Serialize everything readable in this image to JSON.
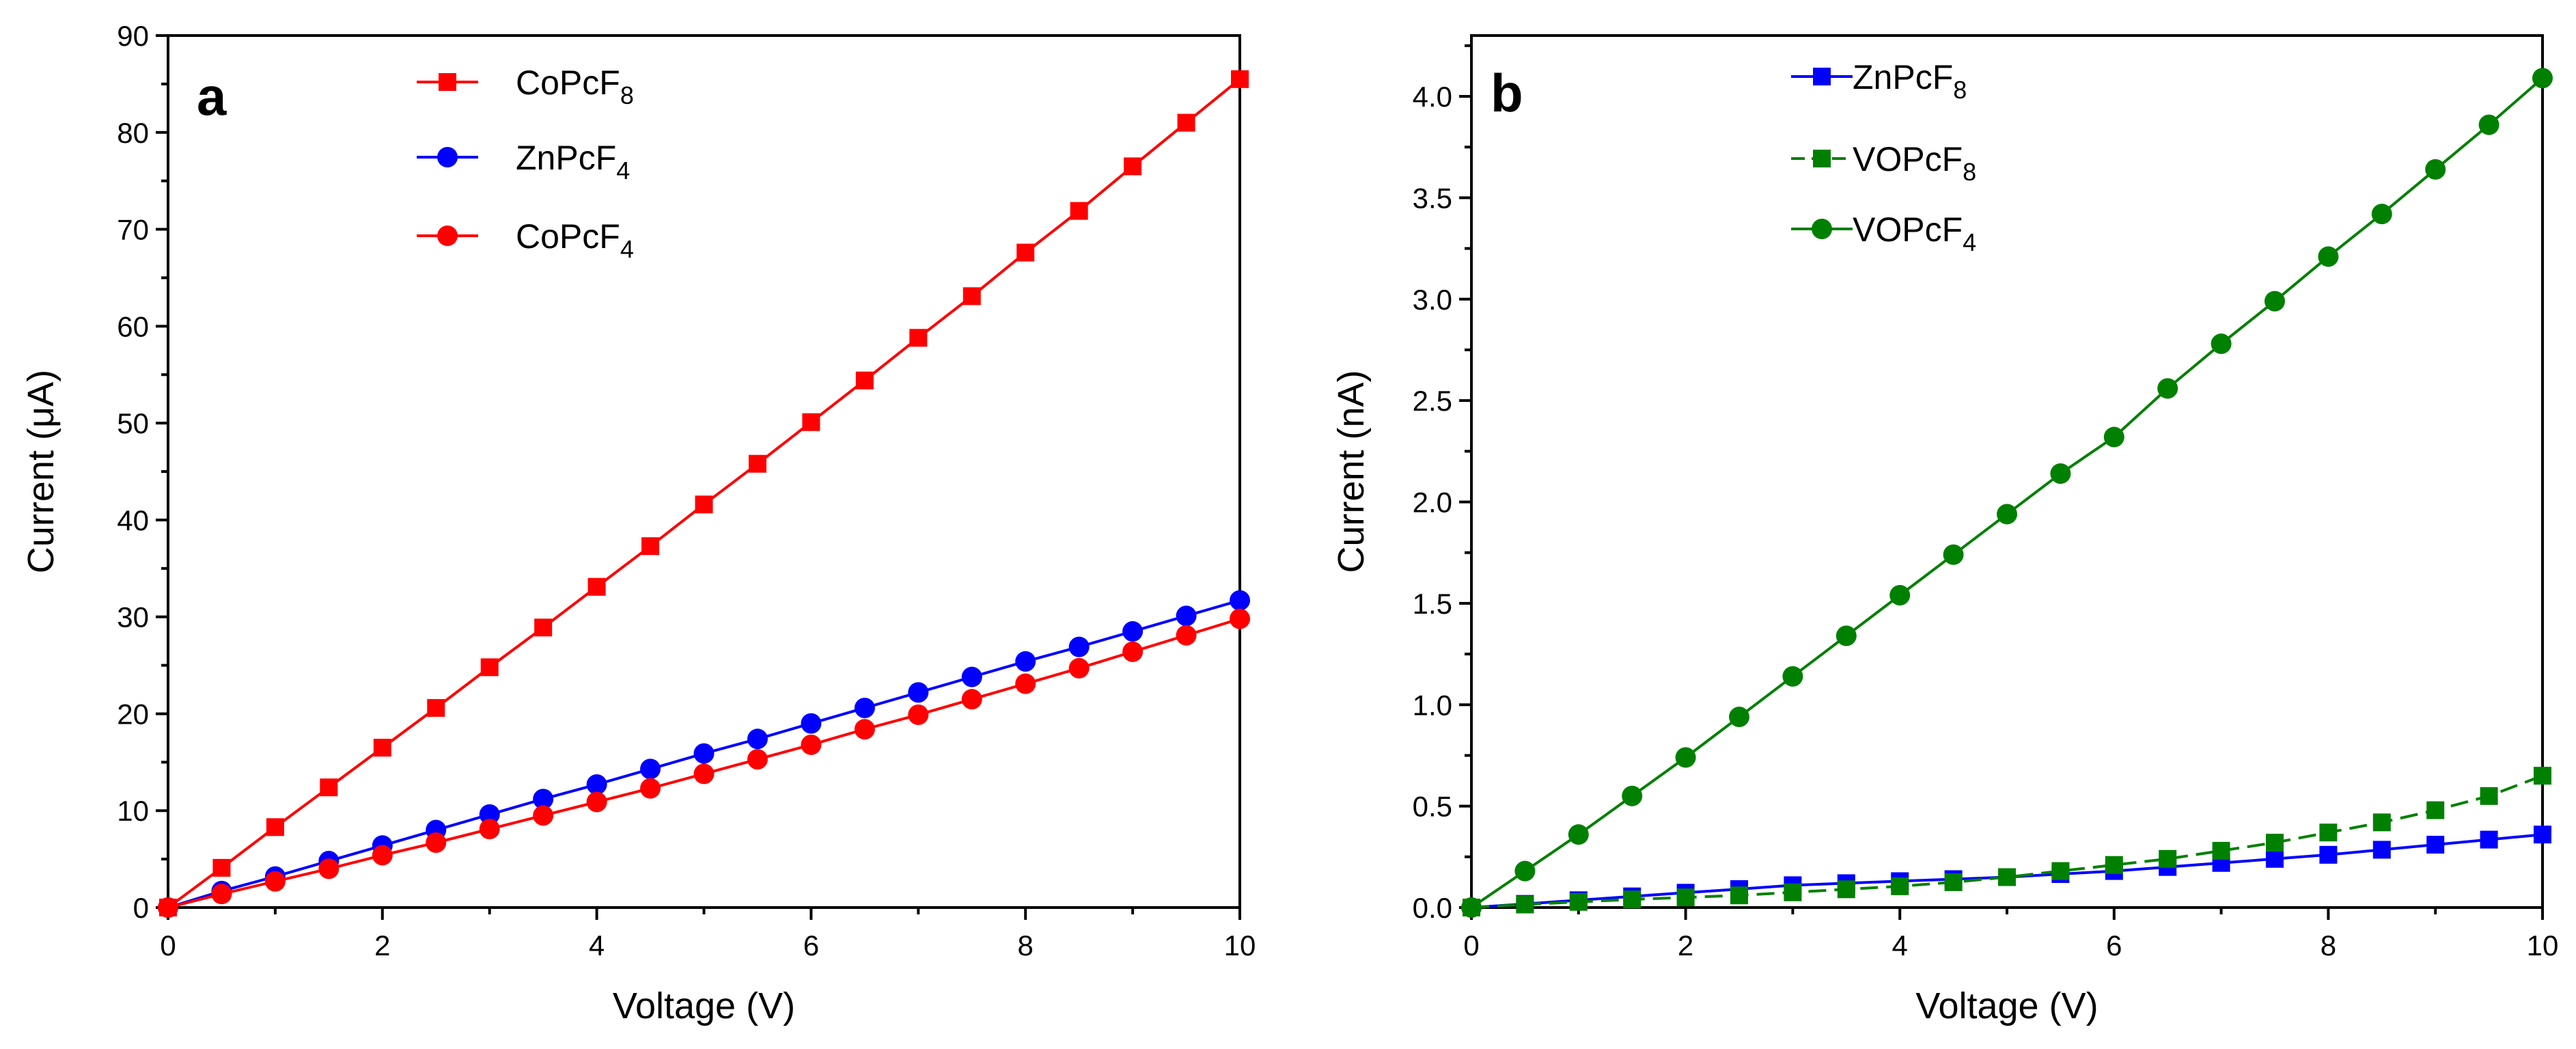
{
  "chart_data": [
    {
      "type": "line",
      "panel_label": "a",
      "xlabel": "Voltage (V)",
      "ylabel": "Current (μA)",
      "xlim": [
        0,
        10
      ],
      "ylim": [
        0,
        90
      ],
      "xticks": [
        "0",
        "2",
        "4",
        "6",
        "8",
        "10"
      ],
      "yticks": [
        "0",
        "10",
        "20",
        "30",
        "40",
        "50",
        "60",
        "70",
        "80",
        "90"
      ],
      "legend_position": "top-left",
      "x": [
        0,
        0.5,
        1,
        1.5,
        2,
        2.5,
        3,
        3.5,
        4,
        4.5,
        5,
        5.5,
        6,
        6.5,
        7,
        7.5,
        8,
        8.5,
        9,
        9.5,
        10
      ],
      "series": [
        {
          "name": "CoPcF8",
          "base": "CoPcF",
          "sub": "8",
          "color": "#ff0000",
          "marker": "square",
          "dashed": false,
          "values": [
            0,
            4.1,
            8.3,
            12.4,
            16.5,
            20.6,
            24.8,
            28.9,
            33.1,
            37.3,
            41.6,
            45.8,
            50.1,
            54.4,
            58.8,
            63.1,
            67.6,
            71.9,
            76.5,
            81.0,
            85.5
          ]
        },
        {
          "name": "ZnPcF4",
          "base": "ZnPcF",
          "sub": "4",
          "color": "#0000ff",
          "marker": "circle",
          "dashed": false,
          "values": [
            0,
            1.7,
            3.2,
            4.8,
            6.4,
            8.0,
            9.6,
            11.2,
            12.7,
            14.3,
            15.9,
            17.4,
            19.0,
            20.6,
            22.2,
            23.8,
            25.4,
            26.9,
            28.5,
            30.1,
            31.7
          ]
        },
        {
          "name": "CoPcF4",
          "base": "CoPcF",
          "sub": "4",
          "color": "#ff0000",
          "marker": "circle",
          "dashed": false,
          "values": [
            0,
            1.4,
            2.7,
            4.0,
            5.4,
            6.7,
            8.1,
            9.5,
            10.9,
            12.3,
            13.8,
            15.3,
            16.8,
            18.4,
            19.9,
            21.5,
            23.1,
            24.7,
            26.4,
            28.1,
            29.8
          ]
        }
      ]
    },
    {
      "type": "line",
      "panel_label": "b",
      "xlabel": "Voltage (V)",
      "ylabel": "Current (nA)",
      "xlim": [
        0,
        10
      ],
      "ylim": [
        0,
        4.3
      ],
      "xticks": [
        "0",
        "2",
        "4",
        "6",
        "8",
        "10"
      ],
      "yticks": [
        "0.0",
        "0.5",
        "1.0",
        "1.5",
        "2.0",
        "2.5",
        "3.0",
        "3.5",
        "4.0"
      ],
      "legend_position": "top-left",
      "x": [
        0,
        0.5,
        1,
        1.5,
        2,
        2.5,
        3,
        3.5,
        4,
        4.5,
        5,
        5.5,
        6,
        6.5,
        7,
        7.5,
        8,
        8.5,
        9,
        9.5,
        10
      ],
      "series": [
        {
          "name": "ZnPcF8",
          "base": "ZnPcF",
          "sub": "8",
          "color": "#0000ff",
          "marker": "square",
          "dashed": false,
          "values": [
            0,
            0.018,
            0.036,
            0.055,
            0.073,
            0.091,
            0.11,
            0.12,
            0.13,
            0.14,
            0.15,
            0.165,
            0.18,
            0.2,
            0.22,
            0.24,
            0.26,
            0.285,
            0.31,
            0.335,
            0.36
          ]
        },
        {
          "name": "VOPcF8",
          "base": "VOPcF",
          "sub": "8",
          "color": "#008000",
          "marker": "square",
          "dashed": true,
          "values": [
            0,
            0.015,
            0.028,
            0.04,
            0.05,
            0.06,
            0.075,
            0.09,
            0.105,
            0.125,
            0.15,
            0.18,
            0.21,
            0.24,
            0.28,
            0.32,
            0.37,
            0.42,
            0.48,
            0.55,
            0.65
          ]
        },
        {
          "name": "VOPcF4",
          "base": "VOPcF",
          "sub": "4",
          "color": "#008000",
          "marker": "circle",
          "dashed": false,
          "values": [
            0,
            0.18,
            0.36,
            0.55,
            0.74,
            0.94,
            1.14,
            1.34,
            1.54,
            1.74,
            1.94,
            2.14,
            2.32,
            2.56,
            2.78,
            2.99,
            3.21,
            3.42,
            3.64,
            3.86,
            4.09
          ]
        }
      ]
    }
  ]
}
